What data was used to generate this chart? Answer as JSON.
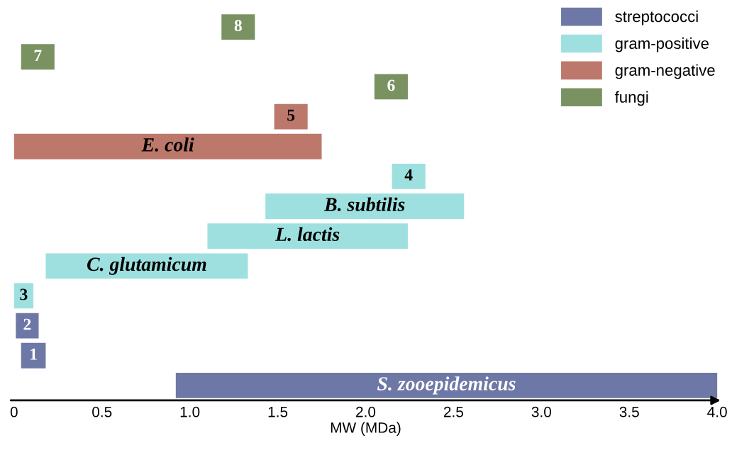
{
  "chart_data": {
    "type": "bar",
    "orientation": "horizontal",
    "xlabel": "MW (MDa)",
    "categories": [
      "8",
      "7",
      "6",
      "5",
      "E. coli",
      "4",
      "B. subtilis",
      "L. lactis",
      "C. glutamicum",
      "3",
      "2",
      "1",
      "S. zooepidemicus"
    ],
    "series": [
      {
        "name": "streptococci",
        "color": "#6e78a6",
        "base": [
          null,
          null,
          null,
          null,
          null,
          null,
          null,
          null,
          null,
          null,
          0.01,
          0.04,
          0.92
        ],
        "values": [
          null,
          null,
          null,
          null,
          null,
          null,
          null,
          null,
          null,
          null,
          0.13,
          0.14,
          3.08
        ]
      },
      {
        "name": "gram-positive",
        "color": "#9ee0e0",
        "base": [
          null,
          null,
          null,
          null,
          null,
          2.15,
          1.43,
          1.1,
          0.18,
          0.0,
          null,
          null,
          null
        ],
        "values": [
          null,
          null,
          null,
          null,
          null,
          0.19,
          1.13,
          1.14,
          1.15,
          0.11,
          null,
          null,
          null
        ]
      },
      {
        "name": "gram-negative",
        "color": "#bd786c",
        "base": [
          null,
          null,
          null,
          1.48,
          0.0,
          null,
          null,
          null,
          null,
          null,
          null,
          null,
          null
        ],
        "values": [
          null,
          null,
          null,
          0.19,
          1.75,
          null,
          null,
          null,
          null,
          null,
          null,
          null,
          null
        ]
      },
      {
        "name": "fungi",
        "color": "#7a9262",
        "base": [
          1.18,
          0.04,
          2.05,
          null,
          null,
          null,
          null,
          null,
          null,
          null,
          null,
          null,
          null
        ],
        "values": [
          0.19,
          0.19,
          0.19,
          null,
          null,
          null,
          null,
          null,
          null,
          null,
          null,
          null,
          null
        ]
      }
    ],
    "xlim": [
      -0.03,
      4.03
    ],
    "xticks": [
      0,
      0.5,
      {
        "value": 1,
        "label": "1.0"
      },
      1.5,
      {
        "value": 2,
        "label": "2.0"
      },
      2.5,
      {
        "value": 3,
        "label": "3.0"
      },
      3.5,
      {
        "value": 4,
        "label": "4.0"
      }
    ],
    "legend": "top right",
    "grid": false
  }
}
